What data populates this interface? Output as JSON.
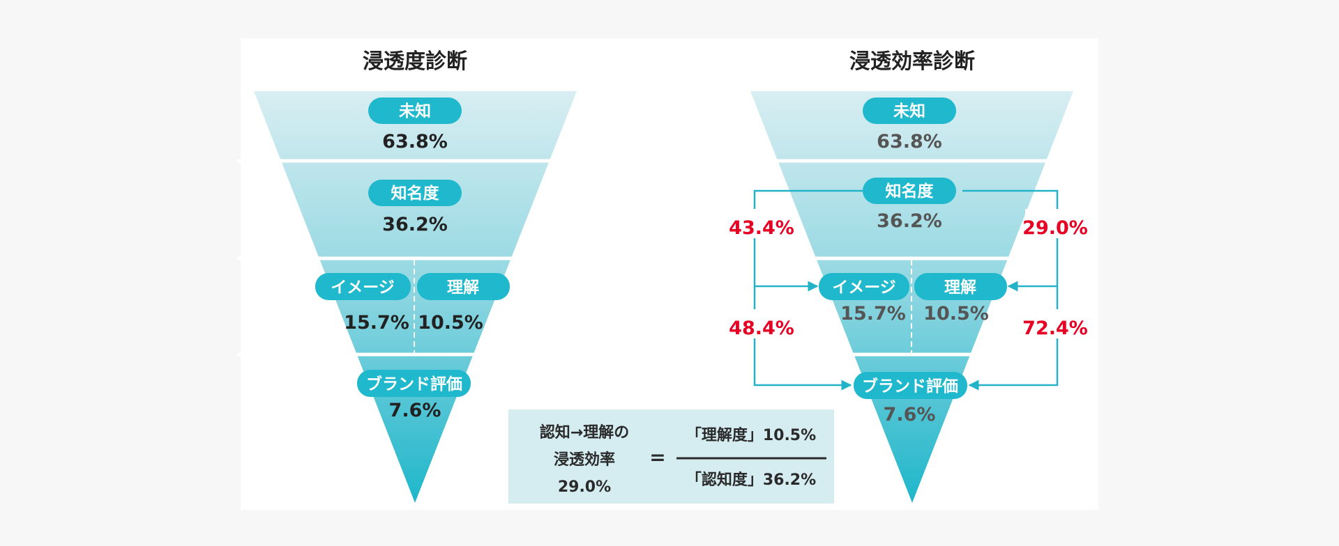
{
  "colors": {
    "pill": "#1fb8cc",
    "accent_line": "#22b3c8",
    "red": "#e60023",
    "box": "#d5ecf0"
  },
  "left": {
    "title": "浸透度診断",
    "unknown": {
      "label": "未知",
      "value": "63.8%"
    },
    "awareness": {
      "label": "知名度",
      "value": "36.2%"
    },
    "image": {
      "label": "イメージ",
      "value": "15.7%"
    },
    "understanding": {
      "label": "理解",
      "value": "10.5%"
    },
    "brand": {
      "label": "ブランド評価",
      "value": "7.6%"
    }
  },
  "right": {
    "title": "浸透効率診断",
    "unknown": {
      "label": "未知",
      "value": "63.8%"
    },
    "awareness": {
      "label": "知名度",
      "value": "36.2%"
    },
    "image": {
      "label": "イメージ",
      "value": "15.7%"
    },
    "understanding": {
      "label": "理解",
      "value": "10.5%"
    },
    "brand": {
      "label": "ブランド評価",
      "value": "7.6%"
    },
    "rates": {
      "awareness_to_image": "43.4%",
      "awareness_to_understanding": "29.0%",
      "image_to_brand": "48.4%",
      "understanding_to_brand": "72.4%"
    }
  },
  "formula": {
    "lhs_line1": "認知→理解の",
    "lhs_line2": "浸透効率",
    "lhs_value": "29.0%",
    "equals": "=",
    "numerator": "「理解度」10.5%",
    "denominator": "「認知度」36.2%"
  }
}
